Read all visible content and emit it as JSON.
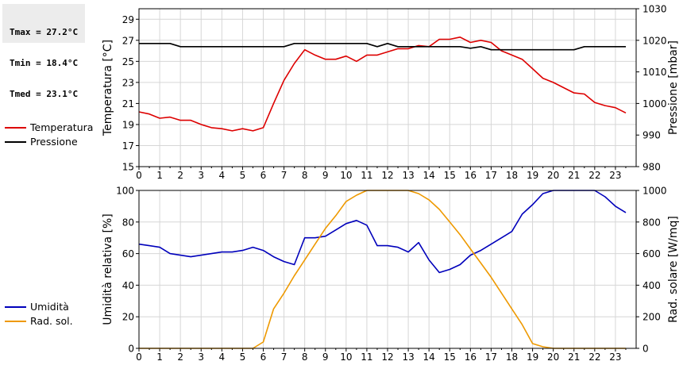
{
  "stats": {
    "tmax": "Tmax = 27.2°C",
    "tmin": "Tmin = 18.4°C",
    "tmed": "Tmed = 23.1°C"
  },
  "legend_top": [
    {
      "label": "Temperatura",
      "color": "#dd0000"
    },
    {
      "label": "Pressione",
      "color": "#000000"
    }
  ],
  "legend_bottom": [
    {
      "label": "Umidità",
      "color": "#0000bb"
    },
    {
      "label": "Rad. sol.",
      "color": "#ee9900"
    }
  ],
  "chart_data": [
    {
      "type": "line",
      "ylabel": "Temperatura [°C]",
      "y2label": "Pressione [mbar]",
      "xlim": [
        0,
        24
      ],
      "ylim": [
        15,
        30
      ],
      "y2lim": [
        980,
        1030
      ],
      "xticks": [
        "0",
        "1",
        "2",
        "3",
        "4",
        "5",
        "6",
        "7",
        "8",
        "9",
        "10",
        "11",
        "12",
        "13",
        "14",
        "15",
        "16",
        "17",
        "18",
        "19",
        "20",
        "21",
        "22",
        "23"
      ],
      "yticks": [
        "15",
        "17",
        "19",
        "21",
        "23",
        "25",
        "27",
        "29"
      ],
      "y2ticks": [
        "980",
        "990",
        "1000",
        "1010",
        "1020",
        "1030"
      ],
      "grid": true,
      "series": [
        {
          "name": "Temperatura",
          "axis": "left",
          "color": "#dd0000",
          "x": [
            0,
            0.5,
            1,
            1.5,
            2,
            2.5,
            3,
            3.5,
            4,
            4.5,
            5,
            5.5,
            6,
            6.5,
            7,
            7.5,
            8,
            8.5,
            9,
            9.5,
            10,
            10.5,
            11,
            11.5,
            12,
            12.5,
            13,
            13.5,
            14,
            14.5,
            15,
            15.5,
            16,
            16.5,
            17,
            17.5,
            18,
            18.5,
            19,
            19.5,
            20,
            20.5,
            21,
            21.5,
            22,
            22.5,
            23,
            23.5
          ],
          "y": [
            20.2,
            20.0,
            19.6,
            19.7,
            19.4,
            19.4,
            19.0,
            18.7,
            18.6,
            18.4,
            18.6,
            18.4,
            18.7,
            21.0,
            23.2,
            24.8,
            26.1,
            25.6,
            25.2,
            25.2,
            25.5,
            25.0,
            25.6,
            25.6,
            25.9,
            26.2,
            26.2,
            26.5,
            26.4,
            27.1,
            27.1,
            27.3,
            26.8,
            27.0,
            26.8,
            26.0,
            25.6,
            25.2,
            24.3,
            23.4,
            23.0,
            22.5,
            22.0,
            21.9,
            21.1,
            20.8,
            20.6,
            20.1
          ]
        },
        {
          "name": "Pressione",
          "axis": "right",
          "color": "#000000",
          "x": [
            0,
            0.5,
            1,
            1.5,
            2,
            2.5,
            3,
            3.5,
            4,
            4.5,
            5,
            5.5,
            6,
            6.5,
            7,
            7.5,
            8,
            8.5,
            9,
            9.5,
            10,
            10.5,
            11,
            11.5,
            12,
            12.5,
            13,
            13.5,
            14,
            14.5,
            15,
            15.5,
            16,
            16.5,
            17,
            17.5,
            18,
            18.5,
            19,
            19.5,
            20,
            20.5,
            21,
            21.5,
            22,
            22.5,
            23,
            23.5
          ],
          "y": [
            1019,
            1019,
            1019,
            1019,
            1018,
            1018,
            1018,
            1018,
            1018,
            1018,
            1018,
            1018,
            1018,
            1018,
            1018,
            1019,
            1019,
            1019,
            1019,
            1019,
            1019,
            1019,
            1019,
            1018,
            1019,
            1018,
            1018,
            1018,
            1018,
            1018,
            1018,
            1018,
            1017.5,
            1018,
            1017,
            1017,
            1017,
            1017,
            1017,
            1017,
            1017,
            1017,
            1017,
            1018,
            1018,
            1018,
            1018,
            1018
          ]
        }
      ]
    },
    {
      "type": "line",
      "ylabel": "Umidità relativa [%]",
      "y2label": "Rad. solare [W/mq]",
      "xlim": [
        0,
        24
      ],
      "ylim": [
        0,
        100
      ],
      "y2lim": [
        0,
        1000
      ],
      "xticks": [
        "0",
        "1",
        "2",
        "3",
        "4",
        "5",
        "6",
        "7",
        "8",
        "9",
        "10",
        "11",
        "12",
        "13",
        "14",
        "15",
        "16",
        "17",
        "18",
        "19",
        "20",
        "21",
        "22",
        "23"
      ],
      "yticks": [
        "0",
        "20",
        "40",
        "60",
        "80",
        "100"
      ],
      "y2ticks": [
        "0",
        "200",
        "400",
        "600",
        "800",
        "1000"
      ],
      "grid": true,
      "series": [
        {
          "name": "Umidità",
          "axis": "left",
          "color": "#0000bb",
          "x": [
            0,
            0.5,
            1,
            1.5,
            2,
            2.5,
            3,
            3.5,
            4,
            4.5,
            5,
            5.5,
            6,
            6.5,
            7,
            7.5,
            8,
            8.5,
            9,
            9.5,
            10,
            10.5,
            11,
            11.5,
            12,
            12.5,
            13,
            13.5,
            14,
            14.5,
            15,
            15.5,
            16,
            16.5,
            17,
            17.5,
            18,
            18.5,
            19,
            19.5,
            20,
            20.5,
            21,
            21.5,
            22,
            22.5,
            23,
            23.5
          ],
          "y": [
            66,
            65,
            64,
            60,
            59,
            58,
            59,
            60,
            61,
            61,
            62,
            64,
            62,
            58,
            55,
            53,
            70,
            70,
            71,
            75,
            79,
            81,
            78,
            65,
            65,
            64,
            61,
            67,
            56,
            48,
            50,
            53,
            59,
            62,
            66,
            70,
            74,
            85,
            91,
            98,
            100,
            100,
            100,
            100,
            100,
            96,
            90,
            86
          ]
        },
        {
          "name": "Rad. sol.",
          "axis": "right",
          "color": "#ee9900",
          "x": [
            0,
            0.5,
            1,
            1.5,
            2,
            2.5,
            3,
            3.5,
            4,
            4.5,
            5,
            5.5,
            6,
            6.5,
            7,
            7.5,
            8,
            8.5,
            9,
            9.5,
            10,
            10.5,
            11,
            11.5,
            12,
            12.5,
            13,
            13.5,
            14,
            14.5,
            15,
            15.5,
            16,
            16.5,
            17,
            17.5,
            18,
            18.5,
            19,
            19.5,
            20,
            20.5,
            21,
            21.5,
            22,
            22.5,
            23,
            23.5
          ],
          "y": [
            0,
            0,
            0,
            0,
            0,
            0,
            0,
            0,
            0,
            0,
            0,
            0,
            40,
            250,
            350,
            460,
            560,
            660,
            760,
            840,
            930,
            970,
            1000,
            1000,
            1000,
            1000,
            1000,
            980,
            940,
            880,
            800,
            720,
            630,
            540,
            450,
            350,
            250,
            150,
            30,
            10,
            0,
            0,
            0,
            0,
            0,
            0,
            0,
            0
          ]
        }
      ]
    }
  ]
}
